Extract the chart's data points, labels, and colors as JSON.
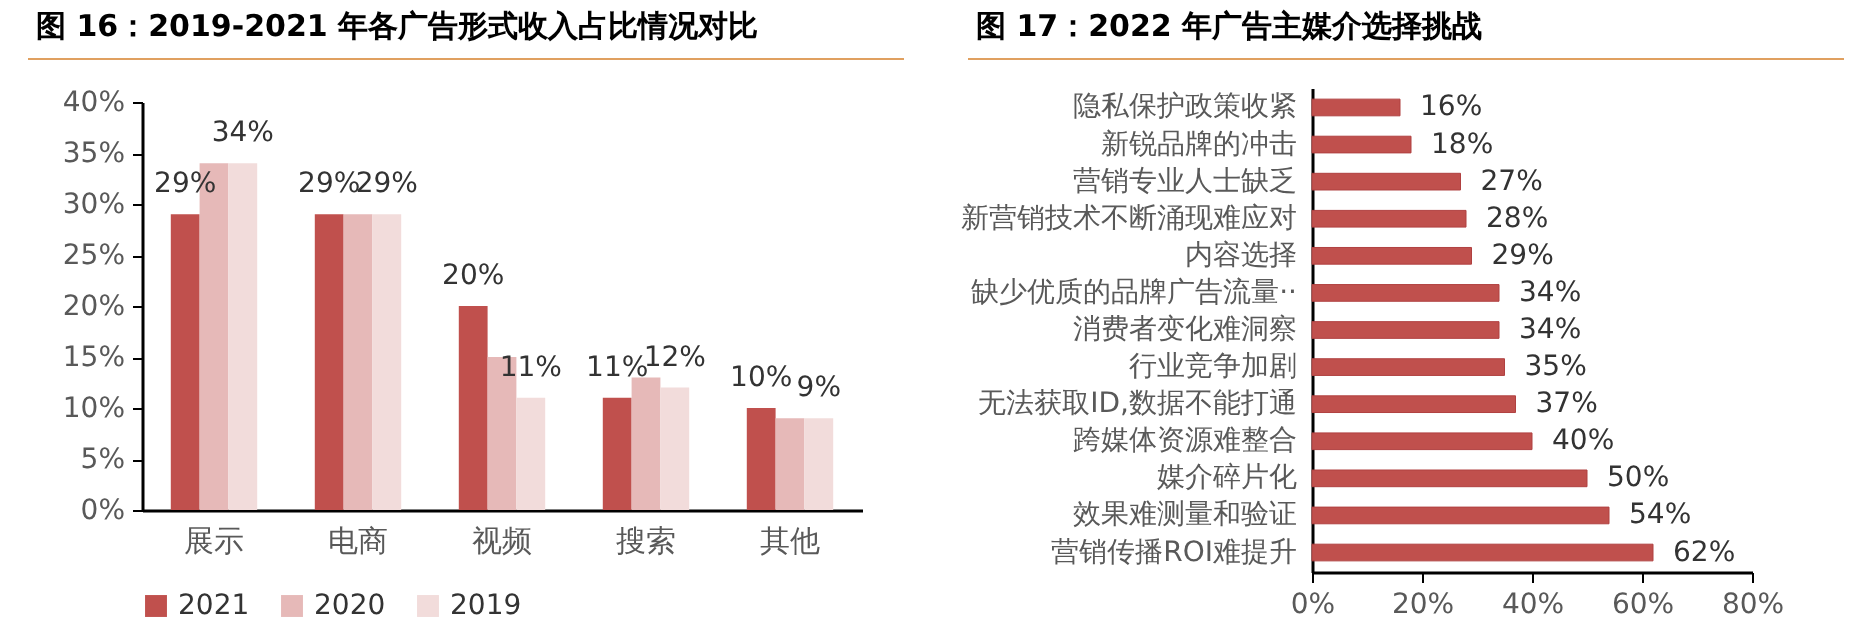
{
  "chart_data": [
    {
      "type": "bar",
      "title": "图 16：2019-2021 年各广告形式收入占比情况对比",
      "categories": [
        "展示",
        "电商",
        "视频",
        "搜索",
        "其他"
      ],
      "series": [
        {
          "name": "2021",
          "color": "#c0504d",
          "values": [
            29,
            29,
            20,
            11,
            10
          ],
          "value_labels": [
            "29%",
            "29%",
            "20%",
            "11%",
            "10%"
          ]
        },
        {
          "name": "2020",
          "color": "#e6b9b8",
          "values": [
            34,
            29,
            15,
            13,
            9
          ],
          "value_labels": [
            null,
            null,
            null,
            null,
            null
          ]
        },
        {
          "name": "2019",
          "color": "#f2dcdb",
          "values": [
            34,
            29,
            11,
            12,
            9
          ],
          "value_labels": [
            "34%",
            "29%",
            "11%",
            "12%",
            "9%"
          ]
        }
      ],
      "ylim": [
        0,
        40
      ],
      "yticks": [
        {
          "value": 0,
          "label": "0%"
        },
        {
          "value": 5,
          "label": "5%"
        },
        {
          "value": 10,
          "label": "10%"
        },
        {
          "value": 15,
          "label": "15%"
        },
        {
          "value": 20,
          "label": "20%"
        },
        {
          "value": 25,
          "label": "25%"
        },
        {
          "value": 30,
          "label": "30%"
        },
        {
          "value": 35,
          "label": "35%"
        },
        {
          "value": 40,
          "label": "40%"
        }
      ],
      "legend": "bottom"
    },
    {
      "type": "bar",
      "title": "图 17：2022 年广告主媒介选择挑战",
      "orientation": "horizontal",
      "categories": [
        "隐私保护政策收紧",
        "新锐品牌的冲击",
        "营销专业人士缺乏",
        "新营销技术不断涌现难应对",
        "内容选择",
        "缺少优质的品牌广告流量··",
        "消费者变化难洞察",
        "行业竞争加剧",
        "无法获取ID,数据不能打通",
        "跨媒体资源难整合",
        "媒介碎片化",
        "效果难测量和验证",
        "营销传播ROI难提升"
      ],
      "values": [
        16,
        18,
        27,
        28,
        29,
        34,
        34,
        35,
        37,
        40,
        50,
        54,
        62
      ],
      "value_labels": [
        "16%",
        "18%",
        "27%",
        "28%",
        "29%",
        "34%",
        "34%",
        "35%",
        "37%",
        "40%",
        "50%",
        "54%",
        "62%"
      ],
      "color": "#c0504d",
      "xlim": [
        0,
        80
      ],
      "xticks": [
        {
          "value": 0,
          "label": "0%"
        },
        {
          "value": 20,
          "label": "20%"
        },
        {
          "value": 40,
          "label": "40%"
        },
        {
          "value": 60,
          "label": "60%"
        },
        {
          "value": 80,
          "label": "80%"
        }
      ]
    }
  ]
}
